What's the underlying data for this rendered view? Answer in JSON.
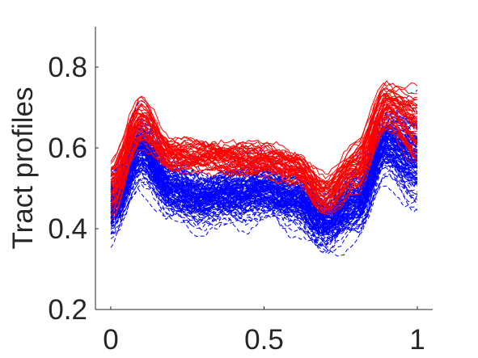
{
  "chart_data": {
    "type": "line",
    "title": "",
    "xlabel": "",
    "ylabel": "Tract   profiles",
    "xlim": [
      -0.05,
      1.05
    ],
    "ylim": [
      0.2,
      0.9
    ],
    "grid": false,
    "legend": "none",
    "x_ticks": [
      {
        "value": 0,
        "label": "0"
      },
      {
        "value": 0.5,
        "label": "0.5"
      },
      {
        "value": 1,
        "label": "1"
      }
    ],
    "y_ticks": [
      {
        "value": 0.2,
        "label": "0.2"
      },
      {
        "value": 0.4,
        "label": "0.4"
      },
      {
        "value": 0.6,
        "label": "0.6"
      },
      {
        "value": 0.8,
        "label": "0.8"
      }
    ],
    "colors": {
      "group_a": "#ff0000",
      "group_b": "#0000ff",
      "axis": "#262626"
    },
    "series_groups": [
      {
        "color": "#ff0000",
        "style": "solid",
        "curve_count": 45,
        "x": [
          0,
          0.1,
          0.2,
          0.3,
          0.4,
          0.5,
          0.6,
          0.7,
          0.8,
          0.9,
          1.0
        ],
        "mean": [
          0.5,
          0.66,
          0.58,
          0.58,
          0.57,
          0.57,
          0.55,
          0.48,
          0.55,
          0.7,
          0.65
        ],
        "spread": [
          0.06,
          0.05,
          0.03,
          0.03,
          0.03,
          0.03,
          0.03,
          0.04,
          0.05,
          0.05,
          0.08
        ]
      },
      {
        "color": "#0000ff",
        "style": "dashed",
        "curve_count": 140,
        "x": [
          0,
          0.1,
          0.2,
          0.3,
          0.4,
          0.5,
          0.6,
          0.7,
          0.8,
          0.9,
          1.0
        ],
        "mean": [
          0.46,
          0.6,
          0.5,
          0.48,
          0.49,
          0.5,
          0.48,
          0.42,
          0.47,
          0.62,
          0.58
        ],
        "spread": [
          0.06,
          0.06,
          0.05,
          0.05,
          0.05,
          0.05,
          0.05,
          0.05,
          0.06,
          0.06,
          0.09
        ]
      }
    ]
  }
}
